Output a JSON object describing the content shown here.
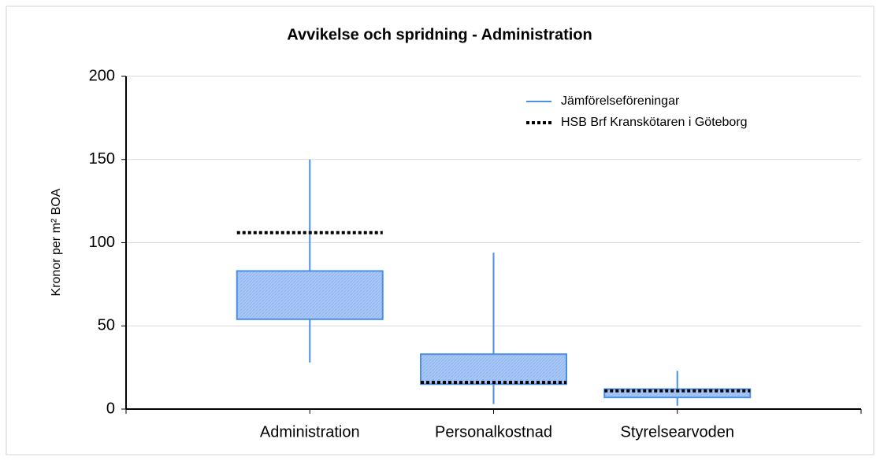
{
  "chart_data": {
    "type": "box",
    "title": "Avvikelse och spridning - Administration",
    "y_label": "Kronor per m² BOA",
    "categories": [
      "Administration",
      "Personalkostnad",
      "Styrelsearvoden"
    ],
    "series": [
      {
        "name": "Jämförelseföreningar",
        "color": "#4a90e2",
        "min": [
          28,
          3,
          2
        ],
        "q1": [
          54,
          15,
          7
        ],
        "q3": [
          83,
          33,
          12
        ],
        "max": [
          150,
          94,
          23
        ]
      },
      {
        "name": "HSB Brf Kranskötaren i Göteborg",
        "color": "#000000",
        "values": [
          106,
          16,
          11
        ]
      }
    ],
    "ylim": [
      0,
      200
    ],
    "yticks": [
      0,
      50,
      100,
      150,
      200
    ],
    "grid": true,
    "legend": "upper right"
  }
}
